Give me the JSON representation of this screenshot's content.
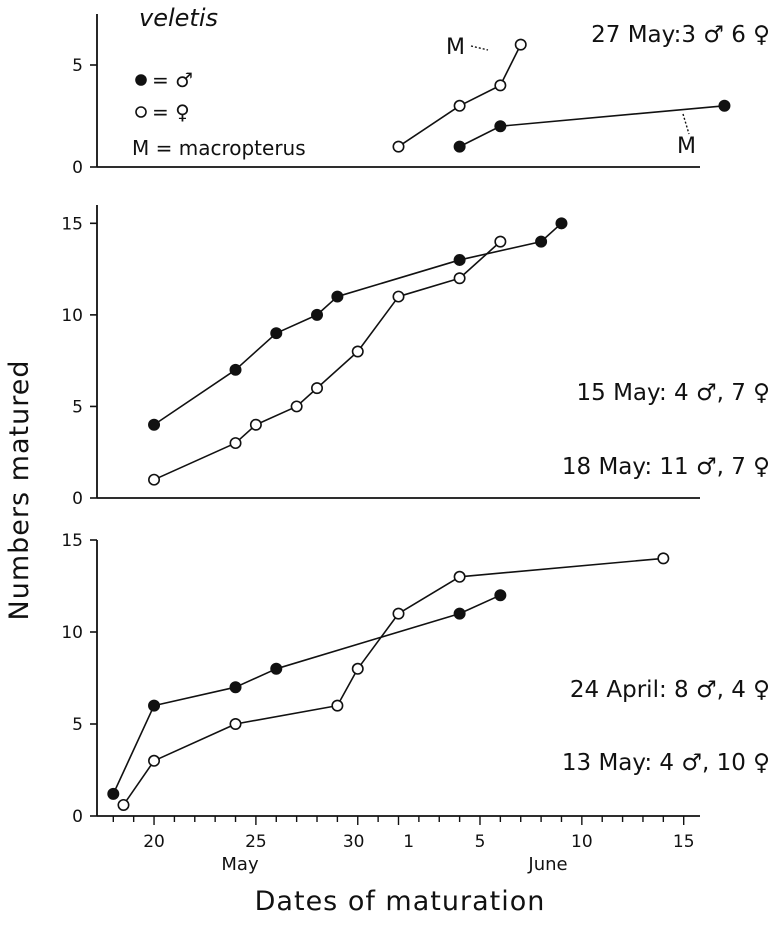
{
  "figure": {
    "ylabel": "Numbers matured",
    "xlabel": "Dates of maturation",
    "month_may": "May",
    "month_june": "June",
    "x_ticks": [
      "20",
      "25",
      "30",
      "1",
      "5",
      "10",
      "15"
    ]
  },
  "legend": {
    "male": "= ♂",
    "female": "= ♀",
    "m_key": "M = macropterus"
  },
  "chart_data": [
    {
      "type": "line",
      "title": "veletis",
      "x_unit": "day index from 1 May (32 = 1 June)",
      "xlim": [
        17.2,
        46.8
      ],
      "ylim": [
        0,
        7.5
      ],
      "yticks": [
        "0",
        "5"
      ],
      "annotations": [
        {
          "text": "27 May:3 ♂ 6 ♀"
        },
        {
          "text": "M",
          "series": "female",
          "x": 38
        },
        {
          "text": "M",
          "series": "male",
          "x": 48
        }
      ],
      "series": [
        {
          "name": "♀",
          "marker": "open",
          "x": [
            32,
            35,
            37,
            38
          ],
          "y": [
            1,
            3,
            4,
            6
          ]
        },
        {
          "name": "♂",
          "marker": "filled",
          "x": [
            35,
            37,
            48
          ],
          "y": [
            1,
            2,
            3
          ]
        }
      ]
    },
    {
      "type": "line",
      "xlim": [
        17.2,
        46.8
      ],
      "ylim": [
        0,
        16
      ],
      "yticks": [
        "0",
        "5",
        "10",
        "15"
      ],
      "annotations": [
        {
          "text": "15 May: 4 ♂, 7 ♀"
        },
        {
          "text": "18 May: 11 ♂, 7 ♀"
        }
      ],
      "series": [
        {
          "name": "♂",
          "marker": "filled",
          "x": [
            20,
            24,
            26,
            28,
            29,
            35,
            39,
            40
          ],
          "y": [
            4,
            7,
            9,
            10,
            11,
            13,
            14,
            15
          ]
        },
        {
          "name": "♀",
          "marker": "open",
          "x": [
            20,
            24,
            25,
            27,
            28,
            30,
            32,
            35,
            37
          ],
          "y": [
            1,
            3,
            4,
            5,
            6,
            8,
            11,
            12,
            14
          ]
        }
      ]
    },
    {
      "type": "line",
      "xlim": [
        17.2,
        46.8
      ],
      "ylim": [
        0,
        15
      ],
      "yticks": [
        "0",
        "5",
        "10",
        "15"
      ],
      "annotations": [
        {
          "text": "24 April: 8 ♂, 4 ♀"
        },
        {
          "text": "13 May: 4 ♂, 10 ♀"
        }
      ],
      "series": [
        {
          "name": "♂",
          "marker": "filled",
          "x": [
            18,
            20,
            24,
            26,
            35,
            37
          ],
          "y": [
            1.2,
            6,
            7,
            8,
            11,
            12
          ]
        },
        {
          "name": "♀",
          "marker": "open",
          "x": [
            18.5,
            20,
            24,
            29,
            30,
            32,
            35,
            45
          ],
          "y": [
            0.6,
            3,
            5,
            6,
            8,
            11,
            13,
            14
          ]
        }
      ]
    }
  ]
}
